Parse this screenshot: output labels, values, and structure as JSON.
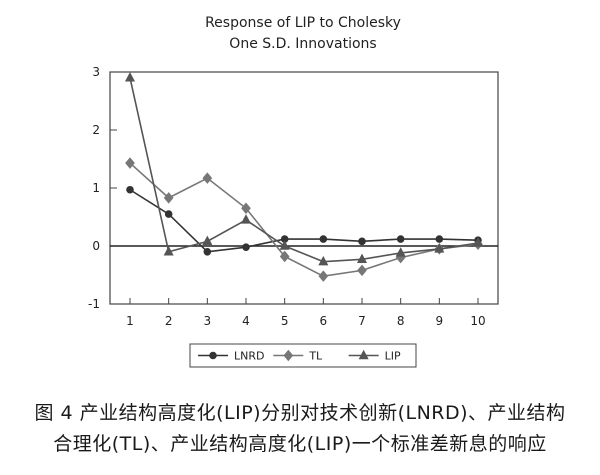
{
  "chart_data": {
    "type": "line",
    "title": "Response of LIP to Cholesky",
    "subtitle": "One S.D. Innovations",
    "xlabel": "",
    "ylabel": "",
    "categories": [
      1,
      2,
      3,
      4,
      5,
      6,
      7,
      8,
      9,
      10
    ],
    "ylim": [
      -1,
      3
    ],
    "yticks": [
      -1,
      0,
      1,
      2,
      3
    ],
    "zero_line": true,
    "grid": false,
    "legend_position": "bottom",
    "series": [
      {
        "name": "LNRD",
        "marker": "circle",
        "color": "#333333",
        "values": [
          0.97,
          0.55,
          -0.1,
          -0.02,
          0.12,
          0.12,
          0.08,
          0.12,
          0.12,
          0.1
        ]
      },
      {
        "name": "TL",
        "marker": "diamond",
        "color": "#777777",
        "values": [
          1.43,
          0.83,
          1.17,
          0.65,
          -0.18,
          -0.52,
          -0.42,
          -0.2,
          -0.05,
          0.03
        ]
      },
      {
        "name": "LIP",
        "marker": "triangle",
        "color": "#555555",
        "values": [
          2.9,
          -0.1,
          0.08,
          0.45,
          0.0,
          -0.27,
          -0.23,
          -0.12,
          -0.05,
          0.05
        ]
      }
    ]
  },
  "caption": {
    "line1": "图 4   产业结构高度化(LIP)分别对技术创新(LNRD)、产业结构",
    "line2": "合理化(TL)、产业结构高度化(LIP)一个标准差新息的响应"
  }
}
